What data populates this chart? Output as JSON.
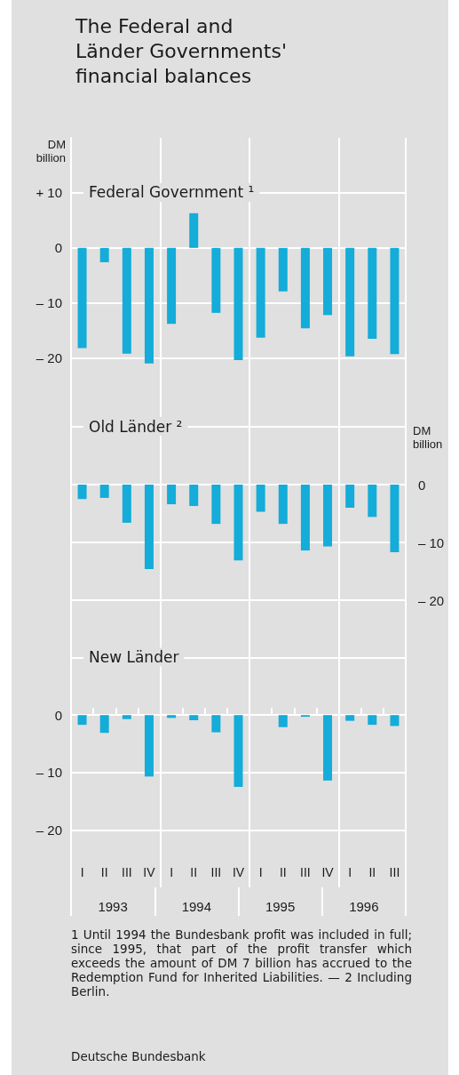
{
  "chart_data": [
    {
      "type": "bar",
      "title": "The Federal and Länder Governments' financial balances",
      "subtitle": "Federal Government ¹",
      "ylabel": "DM billion",
      "categories": [
        null,
        null,
        null,
        null,
        null,
        null,
        null,
        null,
        null,
        null,
        null,
        null,
        null,
        null,
        null
      ],
      "series": [
        {
          "color": "#14acd8",
          "values": [
            -18.2,
            -2.6,
            -19.2,
            -21.0,
            -13.8,
            6.3,
            -11.8,
            -20.4,
            -16.3,
            -7.9,
            -14.6,
            -12.2,
            -19.7,
            -16.5,
            -19.3
          ]
        }
      ],
      "ylim": [
        -22,
        20
      ],
      "yticks": [
        {
          "value": 10,
          "label": "+ 10"
        },
        0,
        {
          "value": -10,
          "label": "– 10"
        },
        {
          "value": -20,
          "label": "– 20"
        }
      ],
      "grid": true
    },
    {
      "type": "bar",
      "title": "Old Länder ²",
      "y2label": "DM billion",
      "categories": [
        null,
        null,
        null,
        null,
        null,
        null,
        null,
        null,
        null,
        null,
        null,
        null,
        null,
        null,
        null
      ],
      "series": [
        {
          "color": "#14acd8",
          "axis": "y2",
          "values": [
            -2.5,
            -2.3,
            -6.6,
            -14.6,
            -3.4,
            -3.7,
            -6.8,
            -13.1,
            -4.7,
            -6.8,
            -11.4,
            -10.7,
            -4.0,
            -5.6,
            -11.7
          ]
        }
      ],
      "y2lim": [
        -20,
        20
      ],
      "y2ticks": [
        {
          "value": 10,
          "label": null
        },
        0,
        {
          "value": -10,
          "label": "– 10"
        },
        {
          "value": -20,
          "label": "– 20"
        }
      ],
      "grid": true
    },
    {
      "type": "bar",
      "title": "New Länder",
      "categories": [
        "I",
        "II",
        "III",
        "IV",
        "I",
        "II",
        "III",
        "IV",
        "I",
        "II",
        "III",
        "IV",
        "I",
        "II",
        "III"
      ],
      "series": [
        {
          "color": "#14acd8",
          "values": [
            -1.7,
            -3.1,
            -0.7,
            -10.7,
            -0.5,
            -0.9,
            -3.0,
            -12.5,
            0,
            -2.1,
            -0.3,
            -11.4,
            -1.0,
            -1.7,
            -1.9
          ]
        }
      ],
      "ylim": [
        -30,
        20
      ],
      "yticks": [
        {
          "value": 10,
          "label": null
        },
        0,
        {
          "value": -10,
          "label": "– 10"
        },
        {
          "value": -20,
          "label": "– 20"
        }
      ],
      "grid": true,
      "annotations": [
        "1993",
        "1994",
        "1995",
        "1996",
        "1 Until 1994 the Bundesbank profit was included in full; since 1995, that part of the profit transfer which exceeds the amount of DM 7 billion has accrued to the Redemption Fund for Inherited Liabilities. — 2 Including Berlin.",
        "Deutsche Bundesbank"
      ]
    }
  ]
}
